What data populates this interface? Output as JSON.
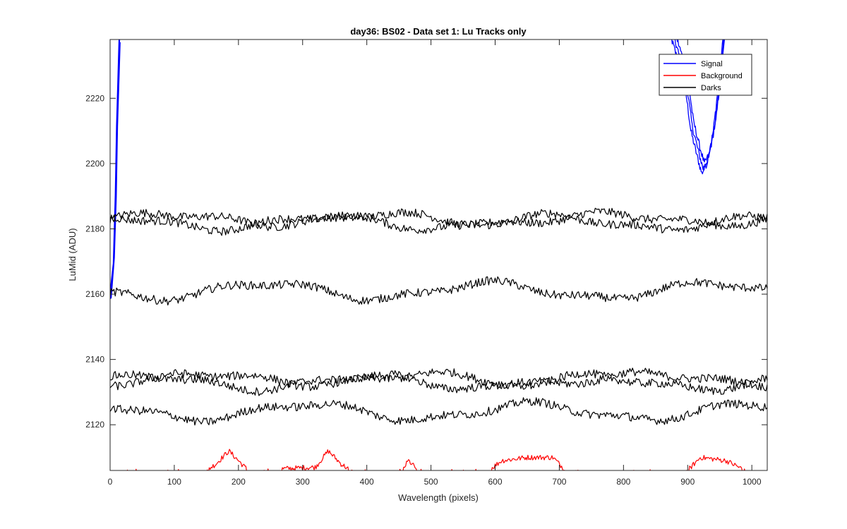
{
  "chart_data": {
    "type": "line",
    "title": "day36: BS02 - Data set 1: Lu Tracks only",
    "xlabel": "Wavelength (pixels)",
    "ylabel": "LuMid (ADU)",
    "xlim": [
      0,
      1024
    ],
    "ylim": [
      2106,
      2238
    ],
    "xticks": [
      0,
      100,
      200,
      300,
      400,
      500,
      600,
      700,
      800,
      900,
      1000
    ],
    "yticks": [
      2120,
      2140,
      2160,
      2180,
      2200,
      2220
    ],
    "grid": false,
    "legend_placement": "top-right",
    "series": [
      {
        "name": "Signal",
        "color": "#0000ff",
        "values_approx": [
          [
            0,
            2160
          ],
          [
            5,
            2170
          ],
          [
            8,
            2190
          ],
          [
            10,
            2210
          ],
          [
            14,
            2238
          ],
          [
            875,
            2238
          ],
          [
            895,
            2225
          ],
          [
            905,
            2210
          ],
          [
            915,
            2202
          ],
          [
            922,
            2197
          ],
          [
            930,
            2200
          ],
          [
            940,
            2210
          ],
          [
            950,
            2228
          ],
          [
            955,
            2238
          ]
        ]
      },
      {
        "name": "Background",
        "color": "#ff0000",
        "values_approx": [
          [
            0,
            2106
          ],
          [
            150,
            2106
          ],
          [
            165,
            2108
          ],
          [
            185,
            2112
          ],
          [
            200,
            2109
          ],
          [
            215,
            2106
          ],
          [
            320,
            2107
          ],
          [
            340,
            2112
          ],
          [
            360,
            2108
          ],
          [
            375,
            2106
          ],
          [
            455,
            2106
          ],
          [
            465,
            2109
          ],
          [
            480,
            2106
          ],
          [
            590,
            2106
          ],
          [
            610,
            2109
          ],
          [
            650,
            2110
          ],
          [
            690,
            2110
          ],
          [
            710,
            2106
          ],
          [
            900,
            2106
          ],
          [
            920,
            2110
          ],
          [
            960,
            2109
          ],
          [
            990,
            2106
          ],
          [
            1024,
            2106
          ]
        ]
      },
      {
        "name": "Darks",
        "color": "#000000",
        "levels_approx": [
          2183,
          2182,
          2161,
          2134,
          2133,
          2124
        ]
      }
    ],
    "legend": [
      "Signal",
      "Background",
      "Darks"
    ]
  }
}
